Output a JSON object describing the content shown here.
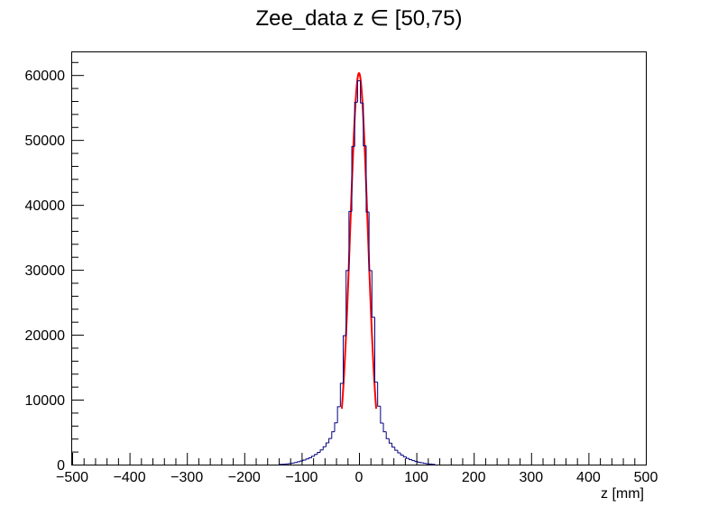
{
  "chart_data": {
    "type": "histogram",
    "title": "Zee_data z  ∈ [50,75)",
    "xlabel": "z [mm]",
    "ylabel": "",
    "xlim": [
      -500,
      500
    ],
    "ylim": [
      0,
      63500
    ],
    "bin_width": 5,
    "x_ticks": [
      -500,
      -400,
      -300,
      -200,
      -100,
      0,
      100,
      200,
      300,
      400,
      500
    ],
    "x_tick_labels": [
      "−500",
      "−400",
      "−300",
      "−200",
      "−100",
      "0",
      "100",
      "200",
      "300",
      "400",
      "500"
    ],
    "y_ticks": [
      0,
      10000,
      20000,
      30000,
      40000,
      50000,
      60000
    ],
    "y_tick_labels": [
      "0",
      "10000",
      "20000",
      "30000",
      "40000",
      "50000",
      "60000"
    ],
    "grid": false,
    "legend": "none",
    "series": [
      {
        "kind": "histogram",
        "color": "#00007f",
        "bins": [
          {
            "x": -135,
            "y": 30
          },
          {
            "x": -130,
            "y": 60
          },
          {
            "x": -125,
            "y": 100
          },
          {
            "x": -120,
            "y": 160
          },
          {
            "x": -115,
            "y": 230
          },
          {
            "x": -110,
            "y": 320
          },
          {
            "x": -105,
            "y": 430
          },
          {
            "x": -100,
            "y": 560
          },
          {
            "x": -95,
            "y": 700
          },
          {
            "x": -90,
            "y": 860
          },
          {
            "x": -85,
            "y": 1050
          },
          {
            "x": -80,
            "y": 1280
          },
          {
            "x": -75,
            "y": 1560
          },
          {
            "x": -70,
            "y": 1880
          },
          {
            "x": -65,
            "y": 2260
          },
          {
            "x": -60,
            "y": 2740
          },
          {
            "x": -55,
            "y": 3330
          },
          {
            "x": -50,
            "y": 4020
          },
          {
            "x": -45,
            "y": 5050
          },
          {
            "x": -40,
            "y": 6420
          },
          {
            "x": -35,
            "y": 8910
          },
          {
            "x": -30,
            "y": 12500
          },
          {
            "x": -25,
            "y": 19850
          },
          {
            "x": -20,
            "y": 29900
          },
          {
            "x": -15,
            "y": 39000
          },
          {
            "x": -10,
            "y": 49000
          },
          {
            "x": -5,
            "y": 55800
          },
          {
            "x": 0,
            "y": 59100
          },
          {
            "x": 5,
            "y": 55700
          },
          {
            "x": 10,
            "y": 49100
          },
          {
            "x": 15,
            "y": 38900
          },
          {
            "x": 20,
            "y": 29900
          },
          {
            "x": 25,
            "y": 22700
          },
          {
            "x": 30,
            "y": 12700
          },
          {
            "x": 35,
            "y": 9000
          },
          {
            "x": 40,
            "y": 6400
          },
          {
            "x": 45,
            "y": 5050
          },
          {
            "x": 50,
            "y": 4000
          },
          {
            "x": 55,
            "y": 3300
          },
          {
            "x": 60,
            "y": 2700
          },
          {
            "x": 65,
            "y": 2200
          },
          {
            "x": 70,
            "y": 1800
          },
          {
            "x": 75,
            "y": 1480
          },
          {
            "x": 80,
            "y": 1200
          },
          {
            "x": 85,
            "y": 960
          },
          {
            "x": 90,
            "y": 760
          },
          {
            "x": 95,
            "y": 600
          },
          {
            "x": 100,
            "y": 470
          },
          {
            "x": 105,
            "y": 360
          },
          {
            "x": 110,
            "y": 270
          },
          {
            "x": 115,
            "y": 190
          },
          {
            "x": 120,
            "y": 130
          },
          {
            "x": 125,
            "y": 80
          },
          {
            "x": 130,
            "y": 40
          }
        ]
      },
      {
        "kind": "fit",
        "color": "#ff0000",
        "function": "gaussian",
        "amplitude": 60300,
        "mean": 0,
        "sigma": 15.2,
        "range": [
          -30,
          30
        ]
      }
    ]
  }
}
